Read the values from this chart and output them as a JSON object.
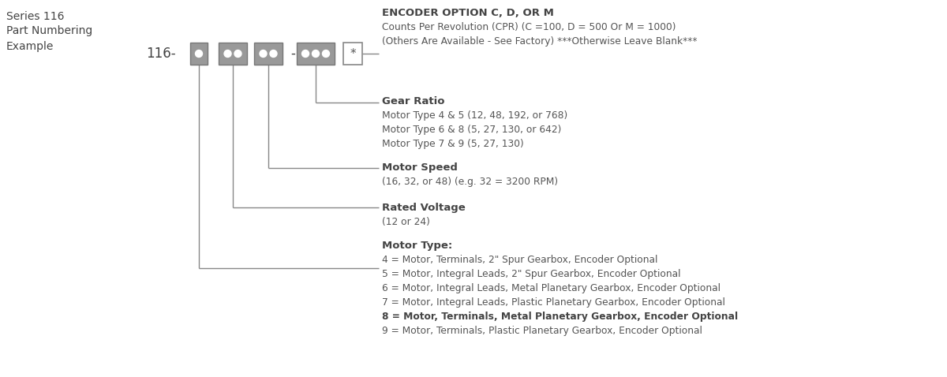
{
  "title_line1": "Series 116",
  "title_line2": "Part Numbering",
  "title_line3": "Example",
  "prefix": "116-",
  "bg_color": "#ffffff",
  "line_color": "#888888",
  "text_color": "#555555",
  "dark_text": "#444444",
  "encoder_title": "ENCODER OPTION C, D, OR M",
  "encoder_line1": "Counts Per Revolution (CPR) (C =100, D = 500 Or M = 1000)",
  "encoder_line2": "(Others Are Available - See Factory) ***Otherwise Leave Blank***",
  "gear_title": "Gear Ratio",
  "gear_line1": "Motor Type 4 & 5 (12, 48, 192, or 768)",
  "gear_line2": "Motor Type 6 & 8 (5, 27, 130, or 642)",
  "gear_line3": "Motor Type 7 & 9 (5, 27, 130)",
  "speed_title": "Motor Speed",
  "speed_line1": "(16, 32, or 48) (e.g. 32 = 3200 RPM)",
  "voltage_title": "Rated Voltage",
  "voltage_line1": "(12 or 24)",
  "motortype_title": "Motor Type:",
  "motortype_line1": "4 = Motor, Terminals, 2\" Spur Gearbox, Encoder Optional",
  "motortype_line2": "5 = Motor, Integral Leads, 2\" Spur Gearbox, Encoder Optional",
  "motortype_line3": "6 = Motor, Integral Leads, Metal Planetary Gearbox, Encoder Optional",
  "motortype_line4": "7 = Motor, Integral Leads, Plastic Planetary Gearbox, Encoder Optional",
  "motortype_line5": "8 = Motor, Terminals, Metal Planetary Gearbox, Encoder Optional",
  "motortype_line6": "9 = Motor, Terminals, Plastic Planetary Gearbox, Encoder Optional",
  "fig_w": 12.0,
  "fig_h": 4.78,
  "dpi": 100
}
